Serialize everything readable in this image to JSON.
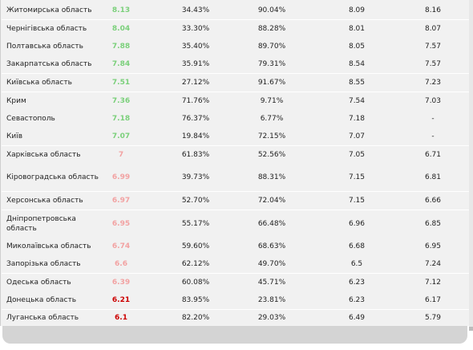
{
  "colors": {
    "high": "#7bd07b",
    "mid": "#f2a2a2",
    "low": "#cc0000"
  },
  "rows": [
    {
      "name": "Житомирська область",
      "score": "8.13",
      "tier": "high",
      "p1": "34.43%",
      "p2": "90.04%",
      "a": "8.09",
      "b": "8.16"
    },
    {
      "name": "Чернігівська область",
      "score": "8.04",
      "tier": "high",
      "p1": "33.30%",
      "p2": "88.28%",
      "a": "8.01",
      "b": "8.07"
    },
    {
      "name": "Полтавська область",
      "score": "7.88",
      "tier": "high",
      "p1": "35.40%",
      "p2": "89.70%",
      "a": "8.05",
      "b": "7.57"
    },
    {
      "name": "Закарпатська область",
      "score": "7.84",
      "tier": "high",
      "p1": "35.91%",
      "p2": "79.31%",
      "a": "8.54",
      "b": "7.57"
    },
    {
      "name": "Київська область",
      "score": "7.51",
      "tier": "high",
      "p1": "27.12%",
      "p2": "91.67%",
      "a": "8.55",
      "b": "7.23"
    },
    {
      "name": "Крим",
      "score": "7.36",
      "tier": "high",
      "p1": "71.76%",
      "p2": "9.71%",
      "a": "7.54",
      "b": "7.03"
    },
    {
      "name": "Севастополь",
      "score": "7.18",
      "tier": "high",
      "p1": "76.37%",
      "p2": "6.77%",
      "a": "7.18",
      "b": "-"
    },
    {
      "name": "Київ",
      "score": "7.07",
      "tier": "high",
      "p1": "19.84%",
      "p2": "72.15%",
      "a": "7.07",
      "b": "-"
    },
    {
      "name": "Харківська область",
      "score": "7",
      "tier": "mid",
      "p1": "61.83%",
      "p2": "52.56%",
      "a": "7.05",
      "b": "6.71"
    },
    {
      "name": "Кіровоградська область",
      "score": "6.99",
      "tier": "mid",
      "p1": "39.73%",
      "p2": "88.31%",
      "a": "7.15",
      "b": "6.81"
    },
    {
      "name": "Херсонська область",
      "score": "6.97",
      "tier": "mid",
      "p1": "52.70%",
      "p2": "72.04%",
      "a": "7.15",
      "b": "6.66"
    },
    {
      "name": "Дніпропетровська область",
      "score": "6.95",
      "tier": "mid",
      "p1": "55.17%",
      "p2": "66.48%",
      "a": "6.96",
      "b": "6.85"
    },
    {
      "name": "Миколаївська область",
      "score": "6.74",
      "tier": "mid",
      "p1": "59.60%",
      "p2": "68.63%",
      "a": "6.68",
      "b": "6.95"
    },
    {
      "name": "Запорізька область",
      "score": "6.6",
      "tier": "mid",
      "p1": "62.12%",
      "p2": "49.70%",
      "a": "6.5",
      "b": "7.24"
    },
    {
      "name": "Одеська область",
      "score": "6.39",
      "tier": "mid",
      "p1": "60.08%",
      "p2": "45.71%",
      "a": "6.23",
      "b": "7.12"
    },
    {
      "name": "Донецька область",
      "score": "6.21",
      "tier": "low",
      "p1": "83.95%",
      "p2": "23.81%",
      "a": "6.23",
      "b": "6.17"
    },
    {
      "name": "Луганська область",
      "score": "6.1",
      "tier": "low",
      "p1": "82.20%",
      "p2": "29.03%",
      "a": "6.49",
      "b": "5.79"
    }
  ]
}
